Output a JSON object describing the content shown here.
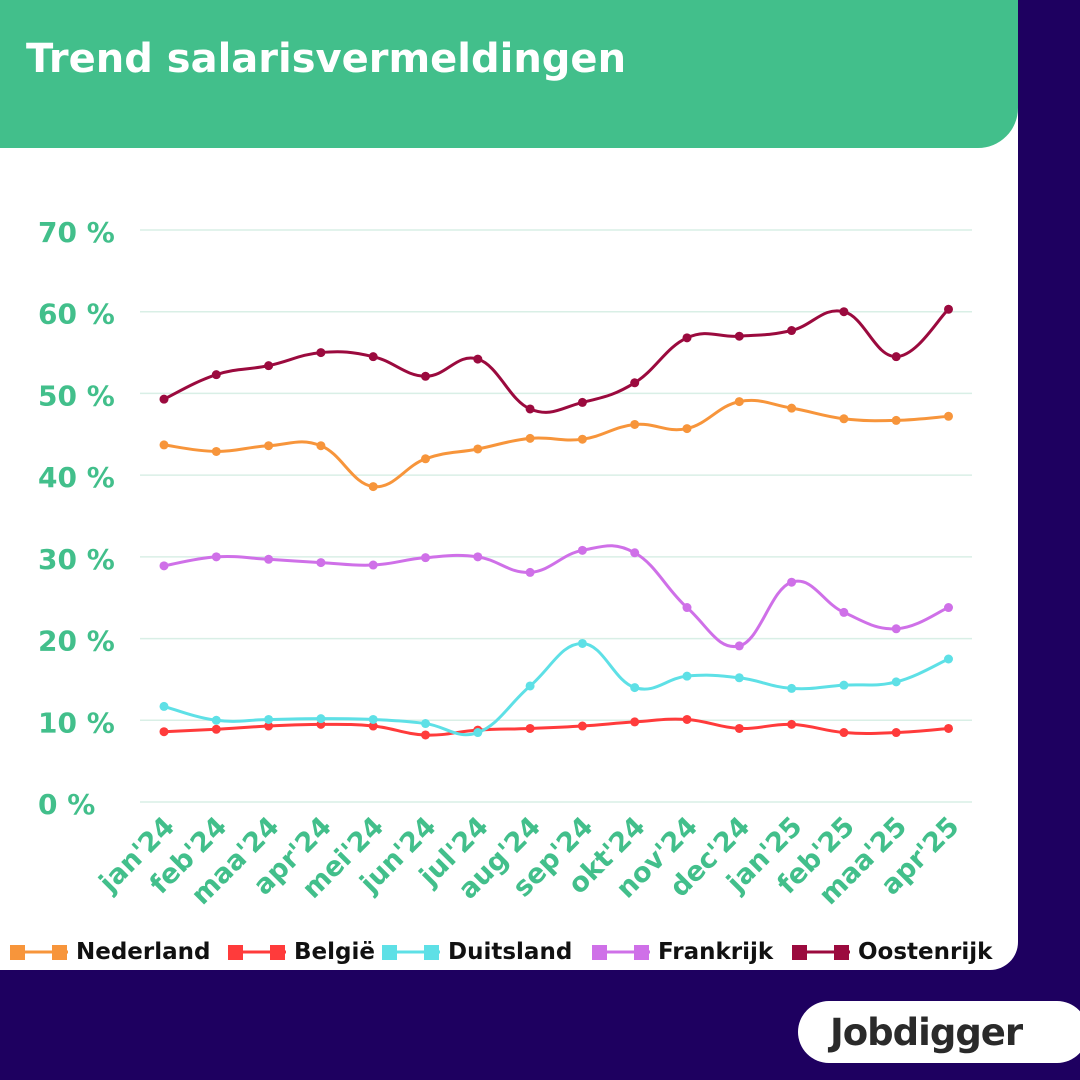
{
  "brand": {
    "logo_text": "Jobdigger",
    "accent": "#42bf8b",
    "background": "#1e0060",
    "tick_color": "#42bf8b",
    "grid_color": "#d9efe6"
  },
  "chart_data": {
    "type": "line",
    "title": "Trend salarisvermeldingen",
    "xlabel": "",
    "ylabel": "",
    "ylim": [
      0,
      70
    ],
    "yticks": [
      0,
      10,
      20,
      30,
      40,
      50,
      60,
      70
    ],
    "ytick_labels": [
      "0 %",
      "10 %",
      "20 %",
      "30 %",
      "40 %",
      "50 %",
      "60 %",
      "70 %"
    ],
    "grid": true,
    "legend_position": "bottom",
    "categories": [
      "jan'24",
      "feb'24",
      "maa'24",
      "apr'24",
      "mei'24",
      "jun'24",
      "jul'24",
      "aug'24",
      "sep'24",
      "okt'24",
      "nov'24",
      "dec'24",
      "jan'25",
      "feb'25",
      "maa'25",
      "apr'25"
    ],
    "series": [
      {
        "name": "Nederland",
        "color": "#f7953b",
        "values": [
          43.7,
          42.9,
          43.6,
          43.6,
          38.6,
          42.0,
          43.2,
          44.5,
          44.4,
          46.2,
          45.7,
          49.0,
          48.2,
          46.9,
          46.7,
          47.2
        ]
      },
      {
        "name": "België",
        "color": "#ff3b3b",
        "values": [
          8.6,
          8.9,
          9.3,
          9.5,
          9.3,
          8.2,
          8.8,
          9.0,
          9.3,
          9.8,
          10.1,
          9.0,
          9.5,
          8.5,
          8.5,
          9.0
        ]
      },
      {
        "name": "Duitsland",
        "color": "#5ee0e6",
        "values": [
          11.7,
          10.0,
          10.1,
          10.2,
          10.1,
          9.6,
          8.5,
          14.2,
          19.4,
          14.0,
          15.4,
          15.2,
          13.9,
          14.3,
          14.7,
          17.5
        ]
      },
      {
        "name": "Frankrijk",
        "color": "#cf70e8",
        "values": [
          28.9,
          30.0,
          29.7,
          29.3,
          29.0,
          29.9,
          30.0,
          28.1,
          30.8,
          30.5,
          23.8,
          19.1,
          26.9,
          23.2,
          21.2,
          23.8
        ]
      },
      {
        "name": "Oostenrijk",
        "color": "#9b0a3e",
        "values": [
          49.3,
          52.3,
          53.4,
          55.0,
          54.5,
          52.1,
          54.2,
          48.1,
          48.9,
          51.3,
          56.8,
          57.0,
          57.7,
          60.0,
          54.5,
          60.3
        ]
      }
    ]
  }
}
